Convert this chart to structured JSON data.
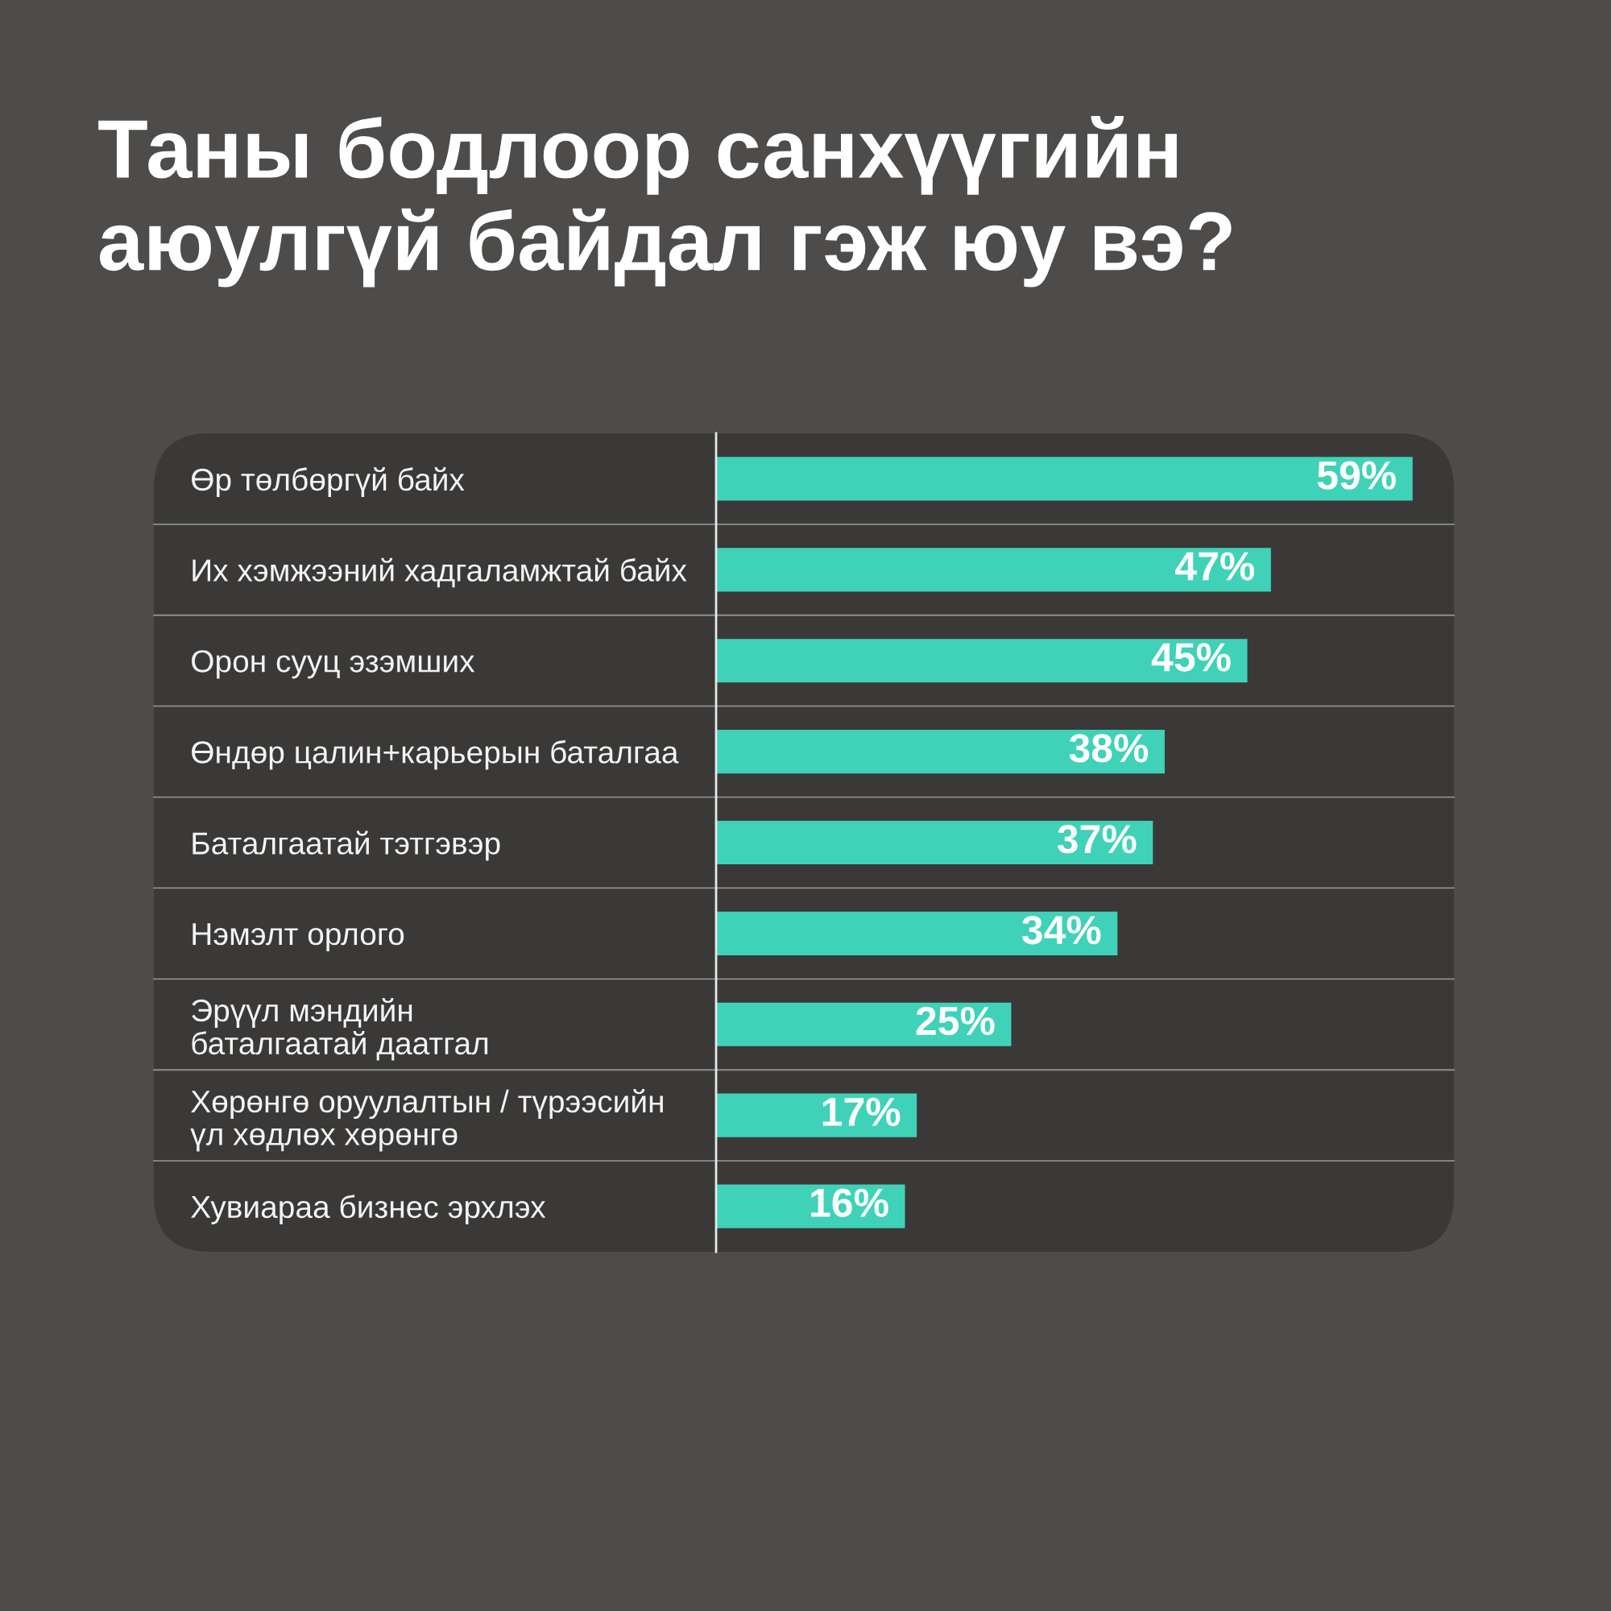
{
  "chart_data": {
    "type": "bar",
    "orientation": "horizontal",
    "title": "Таны бодлоор санхүүгийн\nаюулгүй байдал гэж юу вэ?",
    "categories": [
      "Өр төлбөргүй байх",
      "Их хэмжээний хадгаламжтай байх",
      "Орон сууц эзэмших",
      "Өндөр цалин+карьерын баталгаа",
      "Баталгаатай тэтгэвэр",
      "Нэмэлт орлого",
      "Эрүүл мэндийн\nбаталгаатай даатгал",
      "Хөрөнгө оруулалтын / түрээсийн\nүл хөдлөх хөрөнгө",
      "Хувиараа бизнес эрхлэх"
    ],
    "values": [
      59,
      47,
      45,
      38,
      37,
      34,
      25,
      17,
      16
    ],
    "value_labels": [
      "59%",
      "47%",
      "45%",
      "38%",
      "37%",
      "34%",
      "25%",
      "17%",
      "16%"
    ],
    "color": "#3fd2b8",
    "xlim": [
      0,
      62.5
    ],
    "tick_labels": "y",
    "grid": "y"
  }
}
